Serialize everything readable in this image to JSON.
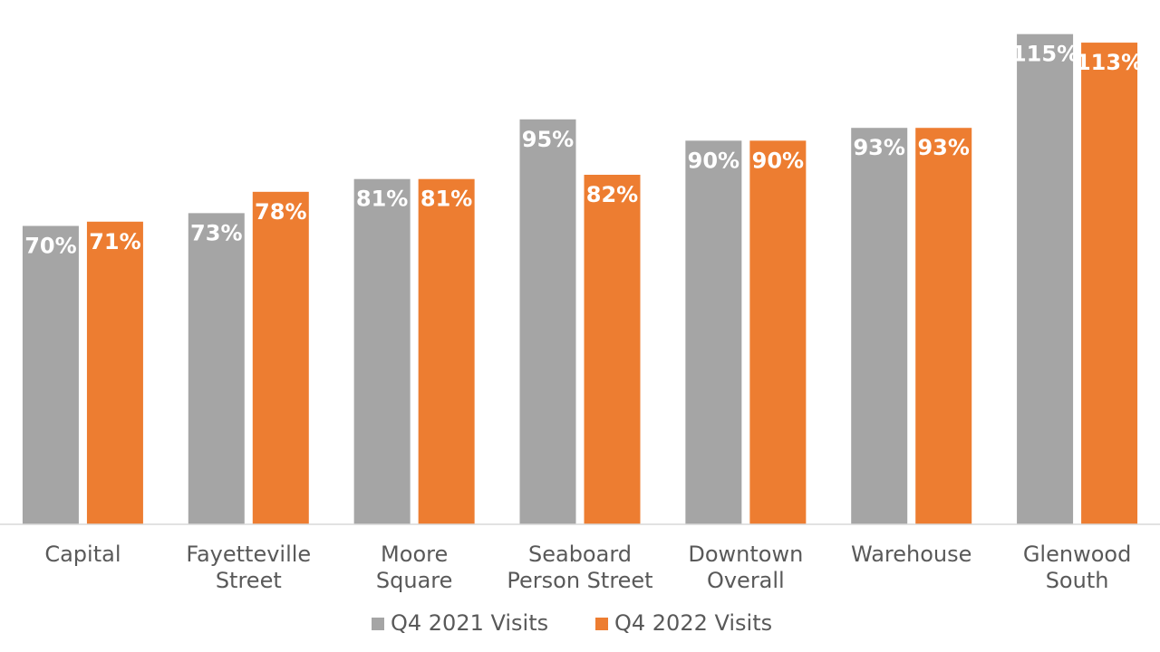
{
  "chart_data": {
    "type": "bar",
    "title": "",
    "xlabel": "",
    "ylabel": "",
    "ylim": [
      0,
      123
    ],
    "grid": false,
    "legend_position": "bottom",
    "categories": [
      [
        "Capital"
      ],
      [
        "Fayetteville",
        "Street"
      ],
      [
        "Moore",
        "Square"
      ],
      [
        "Seaboard",
        "Person Street"
      ],
      [
        "Downtown",
        "Overall"
      ],
      [
        "Warehouse"
      ],
      [
        "Glenwood",
        "South"
      ]
    ],
    "series": [
      {
        "name": "Q4 2021 Visits",
        "color": "#a5a5a5",
        "values": [
          70,
          73,
          81,
          95,
          90,
          93,
          115
        ],
        "labels": [
          "70%",
          "73%",
          "81%",
          "95%",
          "90%",
          "93%",
          "115%"
        ]
      },
      {
        "name": "Q4 2022 Visits",
        "color": "#ed7d31",
        "values": [
          71,
          78,
          81,
          82,
          90,
          93,
          113
        ],
        "labels": [
          "71%",
          "78%",
          "81%",
          "82%",
          "90%",
          "93%",
          "113%"
        ]
      }
    ],
    "data_label_color": "#ffffff",
    "axis_color": "#d9d9d9",
    "text_color": "#595959"
  }
}
